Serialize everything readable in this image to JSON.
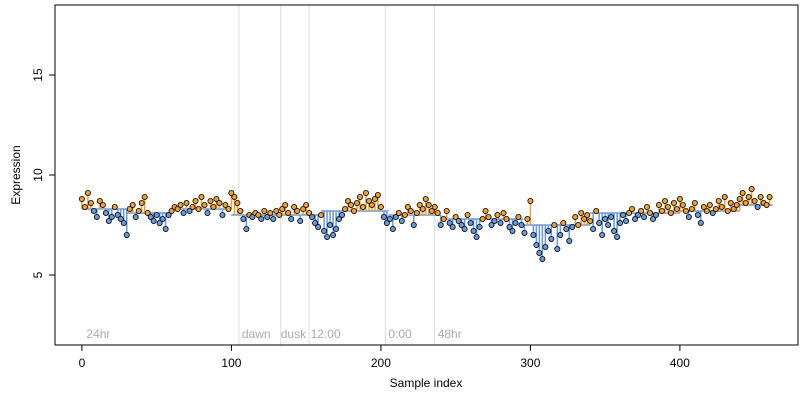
{
  "chart_data": {
    "type": "scatter",
    "xlabel": "Sample index",
    "ylabel": "Expression",
    "xlim": [
      -18,
      479
    ],
    "ylim": [
      1.5,
      18.5
    ],
    "x_ticks": [
      0,
      100,
      200,
      300,
      400
    ],
    "y_ticks": [
      5,
      10,
      15
    ],
    "phase_lines": [
      {
        "x": 105,
        "label": ""
      },
      {
        "x": 133,
        "label": ""
      },
      {
        "x": 152,
        "label": ""
      },
      {
        "x": 203,
        "label": ""
      },
      {
        "x": 236,
        "label": ""
      }
    ],
    "phase_labels": [
      {
        "x": 3,
        "label": "24hr"
      },
      {
        "x": 107,
        "label": "dawn"
      },
      {
        "x": 133,
        "label": "dusk"
      },
      {
        "x": 153,
        "label": "12:00"
      },
      {
        "x": 205,
        "label": "0:00"
      },
      {
        "x": 238,
        "label": "48hr"
      }
    ],
    "baseline_segments": [
      {
        "x": [
          0,
          30
        ],
        "y": 8.3
      },
      {
        "x": [
          30,
          60
        ],
        "y": 8.1
      },
      {
        "x": [
          60,
          100
        ],
        "y": 8.3
      },
      {
        "x": [
          100,
          160
        ],
        "y": 8.0
      },
      {
        "x": [
          160,
          205
        ],
        "y": 8.2
      },
      {
        "x": [
          205,
          240
        ],
        "y": 8.0
      },
      {
        "x": [
          240,
          295
        ],
        "y": 7.8
      },
      {
        "x": [
          295,
          340
        ],
        "y": 7.5
      },
      {
        "x": [
          340,
          400
        ],
        "y": 8.1
      },
      {
        "x": [
          400,
          440
        ],
        "y": 8.2
      },
      {
        "x": [
          440,
          462
        ],
        "y": 8.5
      }
    ],
    "point_colors": {
      "above": "#f0a030",
      "below": "#6699dd",
      "stroke": "#000000"
    },
    "series": [
      {
        "values": [
          {
            "x": 0,
            "y": 8.8
          },
          {
            "x": 2,
            "y": 8.4
          },
          {
            "x": 4,
            "y": 9.1
          },
          {
            "x": 6,
            "y": 8.6
          },
          {
            "x": 8,
            "y": 8.2
          },
          {
            "x": 10,
            "y": 7.9
          },
          {
            "x": 12,
            "y": 8.7
          },
          {
            "x": 14,
            "y": 8.5
          },
          {
            "x": 16,
            "y": 8.1
          },
          {
            "x": 18,
            "y": 7.7
          },
          {
            "x": 20,
            "y": 7.9
          },
          {
            "x": 22,
            "y": 8.4
          },
          {
            "x": 24,
            "y": 8.0
          },
          {
            "x": 26,
            "y": 7.8
          },
          {
            "x": 28,
            "y": 7.6
          },
          {
            "x": 30,
            "y": 7.0
          },
          {
            "x": 32,
            "y": 8.3
          },
          {
            "x": 34,
            "y": 8.5
          },
          {
            "x": 36,
            "y": 7.9
          },
          {
            "x": 38,
            "y": 8.2
          },
          {
            "x": 40,
            "y": 8.6
          },
          {
            "x": 42,
            "y": 8.9
          },
          {
            "x": 44,
            "y": 8.1
          },
          {
            "x": 46,
            "y": 7.9
          },
          {
            "x": 48,
            "y": 7.7
          },
          {
            "x": 50,
            "y": 8.0
          },
          {
            "x": 52,
            "y": 7.6
          },
          {
            "x": 54,
            "y": 7.8
          },
          {
            "x": 56,
            "y": 7.3
          },
          {
            "x": 58,
            "y": 8.0
          },
          {
            "x": 60,
            "y": 8.2
          },
          {
            "x": 62,
            "y": 8.4
          },
          {
            "x": 64,
            "y": 8.3
          },
          {
            "x": 66,
            "y": 8.5
          },
          {
            "x": 68,
            "y": 8.1
          },
          {
            "x": 70,
            "y": 8.6
          },
          {
            "x": 72,
            "y": 8.2
          },
          {
            "x": 74,
            "y": 8.4
          },
          {
            "x": 76,
            "y": 8.7
          },
          {
            "x": 78,
            "y": 8.3
          },
          {
            "x": 80,
            "y": 8.9
          },
          {
            "x": 82,
            "y": 8.5
          },
          {
            "x": 84,
            "y": 8.1
          },
          {
            "x": 86,
            "y": 8.7
          },
          {
            "x": 88,
            "y": 8.4
          },
          {
            "x": 90,
            "y": 8.8
          },
          {
            "x": 92,
            "y": 8.6
          },
          {
            "x": 94,
            "y": 8.0
          },
          {
            "x": 96,
            "y": 8.5
          },
          {
            "x": 98,
            "y": 8.3
          },
          {
            "x": 100,
            "y": 9.1
          },
          {
            "x": 102,
            "y": 8.9
          },
          {
            "x": 104,
            "y": 8.6
          },
          {
            "x": 106,
            "y": 8.2
          },
          {
            "x": 108,
            "y": 7.8
          },
          {
            "x": 110,
            "y": 7.3
          },
          {
            "x": 112,
            "y": 8.0
          },
          {
            "x": 114,
            "y": 7.9
          },
          {
            "x": 116,
            "y": 8.1
          },
          {
            "x": 118,
            "y": 8.0
          },
          {
            "x": 120,
            "y": 7.8
          },
          {
            "x": 122,
            "y": 8.2
          },
          {
            "x": 124,
            "y": 7.9
          },
          {
            "x": 126,
            "y": 8.1
          },
          {
            "x": 128,
            "y": 7.8
          },
          {
            "x": 130,
            "y": 8.2
          },
          {
            "x": 132,
            "y": 8.0
          },
          {
            "x": 134,
            "y": 8.3
          },
          {
            "x": 136,
            "y": 8.5
          },
          {
            "x": 138,
            "y": 8.1
          },
          {
            "x": 140,
            "y": 7.8
          },
          {
            "x": 142,
            "y": 8.4
          },
          {
            "x": 144,
            "y": 8.2
          },
          {
            "x": 146,
            "y": 7.7
          },
          {
            "x": 148,
            "y": 8.3
          },
          {
            "x": 150,
            "y": 8.5
          },
          {
            "x": 152,
            "y": 8.1
          },
          {
            "x": 154,
            "y": 7.9
          },
          {
            "x": 156,
            "y": 7.6
          },
          {
            "x": 158,
            "y": 7.4
          },
          {
            "x": 160,
            "y": 8.0
          },
          {
            "x": 162,
            "y": 7.2
          },
          {
            "x": 164,
            "y": 6.9
          },
          {
            "x": 166,
            "y": 7.5
          },
          {
            "x": 168,
            "y": 7.0
          },
          {
            "x": 170,
            "y": 7.3
          },
          {
            "x": 172,
            "y": 7.8
          },
          {
            "x": 174,
            "y": 8.0
          },
          {
            "x": 176,
            "y": 8.3
          },
          {
            "x": 178,
            "y": 8.7
          },
          {
            "x": 180,
            "y": 8.5
          },
          {
            "x": 182,
            "y": 8.2
          },
          {
            "x": 184,
            "y": 8.6
          },
          {
            "x": 186,
            "y": 8.9
          },
          {
            "x": 188,
            "y": 8.4
          },
          {
            "x": 190,
            "y": 9.1
          },
          {
            "x": 192,
            "y": 8.7
          },
          {
            "x": 194,
            "y": 8.5
          },
          {
            "x": 196,
            "y": 8.8
          },
          {
            "x": 198,
            "y": 9.0
          },
          {
            "x": 200,
            "y": 8.4
          },
          {
            "x": 202,
            "y": 7.9
          },
          {
            "x": 204,
            "y": 7.6
          },
          {
            "x": 206,
            "y": 7.8
          },
          {
            "x": 208,
            "y": 7.3
          },
          {
            "x": 210,
            "y": 7.9
          },
          {
            "x": 212,
            "y": 8.1
          },
          {
            "x": 214,
            "y": 7.7
          },
          {
            "x": 216,
            "y": 8.0
          },
          {
            "x": 218,
            "y": 8.4
          },
          {
            "x": 220,
            "y": 8.2
          },
          {
            "x": 222,
            "y": 7.5
          },
          {
            "x": 224,
            "y": 8.1
          },
          {
            "x": 226,
            "y": 8.5
          },
          {
            "x": 228,
            "y": 8.3
          },
          {
            "x": 230,
            "y": 8.8
          },
          {
            "x": 232,
            "y": 8.5
          },
          {
            "x": 234,
            "y": 8.2
          },
          {
            "x": 236,
            "y": 8.4
          },
          {
            "x": 238,
            "y": 8.1
          },
          {
            "x": 240,
            "y": 7.5
          },
          {
            "x": 242,
            "y": 7.8
          },
          {
            "x": 244,
            "y": 8.2
          },
          {
            "x": 246,
            "y": 7.6
          },
          {
            "x": 248,
            "y": 7.4
          },
          {
            "x": 250,
            "y": 7.9
          },
          {
            "x": 252,
            "y": 7.7
          },
          {
            "x": 254,
            "y": 7.5
          },
          {
            "x": 256,
            "y": 7.3
          },
          {
            "x": 258,
            "y": 8.0
          },
          {
            "x": 260,
            "y": 7.6
          },
          {
            "x": 262,
            "y": 7.2
          },
          {
            "x": 264,
            "y": 6.9
          },
          {
            "x": 266,
            "y": 7.4
          },
          {
            "x": 268,
            "y": 7.8
          },
          {
            "x": 270,
            "y": 8.2
          },
          {
            "x": 272,
            "y": 7.9
          },
          {
            "x": 274,
            "y": 7.5
          },
          {
            "x": 276,
            "y": 7.7
          },
          {
            "x": 278,
            "y": 8.0
          },
          {
            "x": 280,
            "y": 7.6
          },
          {
            "x": 282,
            "y": 8.1
          },
          {
            "x": 284,
            "y": 7.8
          },
          {
            "x": 286,
            "y": 7.4
          },
          {
            "x": 288,
            "y": 7.2
          },
          {
            "x": 290,
            "y": 7.6
          },
          {
            "x": 292,
            "y": 7.9
          },
          {
            "x": 294,
            "y": 7.5
          },
          {
            "x": 296,
            "y": 7.1
          },
          {
            "x": 298,
            "y": 7.8
          },
          {
            "x": 300,
            "y": 8.7
          },
          {
            "x": 302,
            "y": 7.0
          },
          {
            "x": 304,
            "y": 6.5
          },
          {
            "x": 306,
            "y": 6.1
          },
          {
            "x": 308,
            "y": 5.8
          },
          {
            "x": 310,
            "y": 6.4
          },
          {
            "x": 312,
            "y": 7.2
          },
          {
            "x": 314,
            "y": 6.8
          },
          {
            "x": 316,
            "y": 7.5
          },
          {
            "x": 318,
            "y": 6.3
          },
          {
            "x": 320,
            "y": 7.0
          },
          {
            "x": 322,
            "y": 7.6
          },
          {
            "x": 324,
            "y": 7.3
          },
          {
            "x": 326,
            "y": 6.7
          },
          {
            "x": 328,
            "y": 7.4
          },
          {
            "x": 330,
            "y": 7.9
          },
          {
            "x": 332,
            "y": 7.5
          },
          {
            "x": 334,
            "y": 8.1
          },
          {
            "x": 336,
            "y": 7.8
          },
          {
            "x": 338,
            "y": 8.0
          },
          {
            "x": 340,
            "y": 7.7
          },
          {
            "x": 342,
            "y": 7.3
          },
          {
            "x": 344,
            "y": 8.2
          },
          {
            "x": 346,
            "y": 7.6
          },
          {
            "x": 348,
            "y": 7.0
          },
          {
            "x": 350,
            "y": 7.8
          },
          {
            "x": 352,
            "y": 7.5
          },
          {
            "x": 354,
            "y": 7.9
          },
          {
            "x": 356,
            "y": 7.2
          },
          {
            "x": 358,
            "y": 6.9
          },
          {
            "x": 360,
            "y": 7.6
          },
          {
            "x": 362,
            "y": 8.0
          },
          {
            "x": 364,
            "y": 7.7
          },
          {
            "x": 366,
            "y": 8.1
          },
          {
            "x": 368,
            "y": 8.3
          },
          {
            "x": 370,
            "y": 7.8
          },
          {
            "x": 372,
            "y": 8.0
          },
          {
            "x": 374,
            "y": 8.2
          },
          {
            "x": 376,
            "y": 7.9
          },
          {
            "x": 378,
            "y": 8.4
          },
          {
            "x": 380,
            "y": 8.1
          },
          {
            "x": 382,
            "y": 7.8
          },
          {
            "x": 384,
            "y": 8.0
          },
          {
            "x": 386,
            "y": 8.5
          },
          {
            "x": 388,
            "y": 8.2
          },
          {
            "x": 390,
            "y": 8.7
          },
          {
            "x": 392,
            "y": 8.4
          },
          {
            "x": 394,
            "y": 8.1
          },
          {
            "x": 396,
            "y": 8.6
          },
          {
            "x": 398,
            "y": 8.3
          },
          {
            "x": 400,
            "y": 8.8
          },
          {
            "x": 402,
            "y": 8.5
          },
          {
            "x": 404,
            "y": 8.2
          },
          {
            "x": 406,
            "y": 7.9
          },
          {
            "x": 408,
            "y": 8.3
          },
          {
            "x": 410,
            "y": 8.6
          },
          {
            "x": 412,
            "y": 8.0
          },
          {
            "x": 414,
            "y": 7.6
          },
          {
            "x": 416,
            "y": 8.4
          },
          {
            "x": 418,
            "y": 8.2
          },
          {
            "x": 420,
            "y": 8.5
          },
          {
            "x": 422,
            "y": 8.1
          },
          {
            "x": 424,
            "y": 8.3
          },
          {
            "x": 426,
            "y": 8.7
          },
          {
            "x": 428,
            "y": 8.4
          },
          {
            "x": 430,
            "y": 8.9
          },
          {
            "x": 432,
            "y": 8.2
          },
          {
            "x": 434,
            "y": 8.6
          },
          {
            "x": 436,
            "y": 8.3
          },
          {
            "x": 438,
            "y": 8.5
          },
          {
            "x": 440,
            "y": 8.8
          },
          {
            "x": 442,
            "y": 9.1
          },
          {
            "x": 444,
            "y": 8.6
          },
          {
            "x": 446,
            "y": 8.9
          },
          {
            "x": 448,
            "y": 9.3
          },
          {
            "x": 450,
            "y": 8.7
          },
          {
            "x": 452,
            "y": 8.4
          },
          {
            "x": 454,
            "y": 8.9
          },
          {
            "x": 456,
            "y": 8.6
          },
          {
            "x": 458,
            "y": 8.5
          },
          {
            "x": 460,
            "y": 8.9
          }
        ]
      }
    ]
  }
}
